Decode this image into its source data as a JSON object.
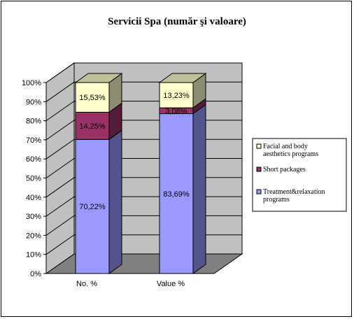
{
  "chart_data": {
    "type": "bar",
    "stacked": true,
    "percent_stacked": true,
    "three_d": true,
    "title": "Servicii Spa  (număr şi valoare)",
    "xlabel": "",
    "ylabel": "",
    "ylim": [
      0,
      100
    ],
    "y_ticks": [
      "0%",
      "10%",
      "20%",
      "30%",
      "40%",
      "50%",
      "60%",
      "70%",
      "80%",
      "90%",
      "100%"
    ],
    "categories": [
      "No. %",
      "Value %"
    ],
    "series": [
      {
        "name": "Treatment&relaxation programs",
        "values": [
          70.22,
          83.69
        ],
        "labels": [
          "70,22%",
          "83,69%"
        ],
        "color": "#9999ff"
      },
      {
        "name": "Short packages",
        "values": [
          14.25,
          3.08
        ],
        "labels": [
          "14,25%",
          "3,08%"
        ],
        "color": "#993366"
      },
      {
        "name": "Facial and body aesthetics programs",
        "values": [
          15.53,
          13.23
        ],
        "labels": [
          "15,53%",
          "13,23%"
        ],
        "color": "#ffffcc"
      }
    ],
    "legend": {
      "position": "right",
      "entries": [
        "Facial and body aesthetics programs",
        "Short packages",
        "Treatment&relaxation programs"
      ]
    },
    "wall_color": "#c0c0c0",
    "floor_color": "#808080"
  }
}
